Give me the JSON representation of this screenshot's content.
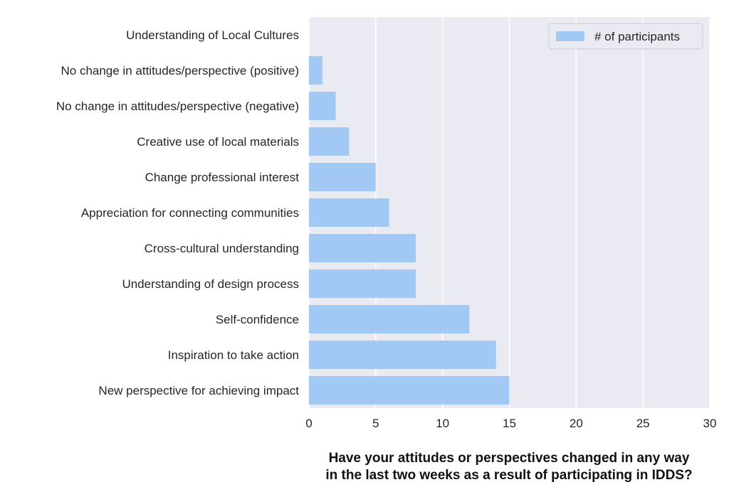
{
  "chart_data": {
    "type": "bar",
    "orientation": "horizontal",
    "categories": [
      "Understanding of Local Cultures",
      "No change in attitudes/perspective (positive)",
      "No change in attitudes/perspective (negative)",
      "Creative use of local materials",
      "Change professional interest",
      "Appreciation for connecting communities",
      "Cross-cultural understanding",
      "Understanding of design process",
      "Self-confidence",
      "Inspiration to take action",
      "New perspective for achieving impact"
    ],
    "series": [
      {
        "name": "# of participants",
        "values": [
          0,
          1,
          2,
          3,
          5,
          6,
          8,
          8,
          12,
          14,
          15
        ]
      }
    ],
    "xlim": [
      0,
      30
    ],
    "xticks": [
      0,
      5,
      10,
      15,
      20,
      25,
      30
    ],
    "xlabel_lines": [
      "Have your attitudes or perspectives changed in any way",
      "in the last two weeks as a result of participating in IDDS?"
    ],
    "grid": true,
    "legend": "top-right",
    "colors": {
      "bar": "#a1c9f4",
      "plot_bg": "#eaeaf2",
      "grid": "#ffffff",
      "text": "#262626"
    }
  }
}
